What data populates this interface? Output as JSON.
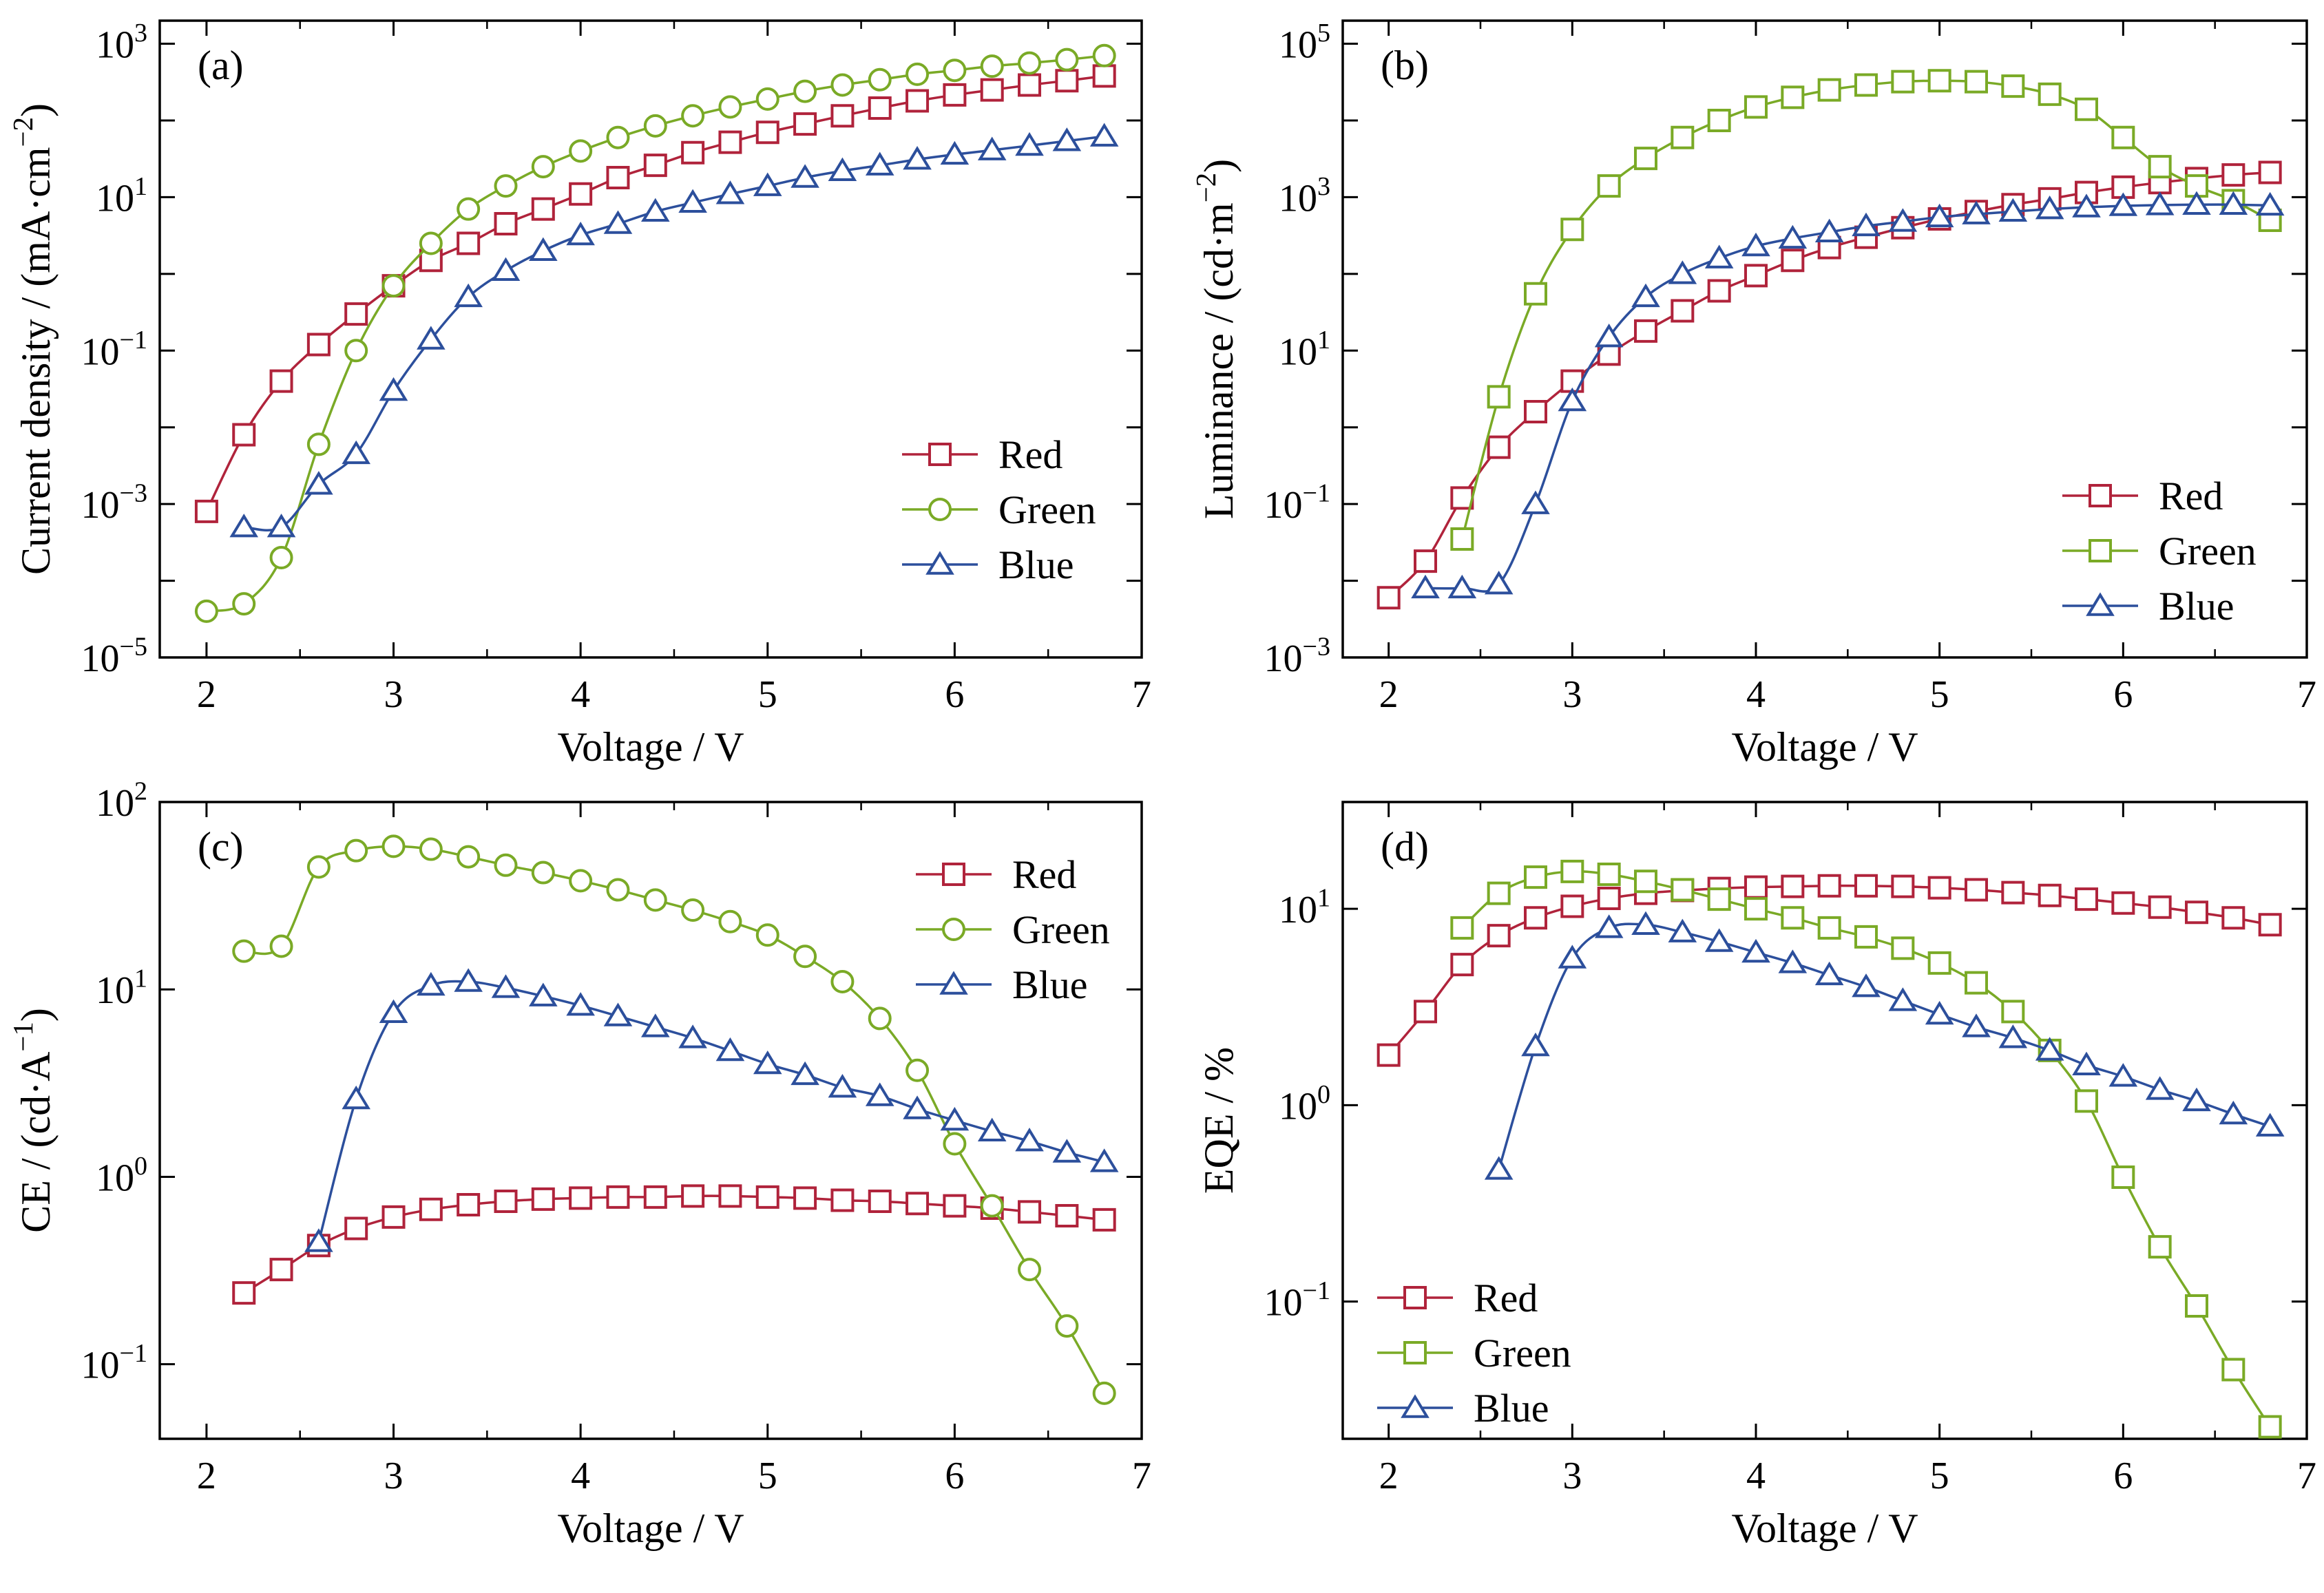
{
  "colors": {
    "Red": "#b0233b",
    "Green": "#7aaa26",
    "Blue": "#2c4f9c",
    "axis": "#000000"
  },
  "chart_data": [
    {
      "panel_label": "(a)",
      "type": "line",
      "xlabel": "Voltage / V",
      "ylabel": "Current density / (mA·cm",
      "ylabel_sup": "−2",
      "ylabel_end": ")",
      "xlim": [
        1.75,
        7
      ],
      "ylim": [
        1e-05,
        2000
      ],
      "yscale": "log",
      "x_ticks": [
        2,
        3,
        4,
        5,
        6,
        7
      ],
      "y_ticks": [
        {
          "base": "10",
          "exp": "−5"
        },
        {
          "base": "10",
          "exp": "−3"
        },
        {
          "base": "10",
          "exp": "−1"
        },
        {
          "base": "10",
          "exp": "1"
        },
        {
          "base": "10",
          "exp": "3"
        }
      ],
      "y_tick_values": [
        1e-05,
        0.001,
        0.1,
        10,
        1000
      ],
      "legend_position": "lower-right",
      "series": [
        {
          "name": "Red",
          "marker": "square",
          "x": [
            2.0,
            2.2,
            2.4,
            2.6,
            2.8,
            3.0,
            3.2,
            3.4,
            3.6,
            3.8,
            4.0,
            4.2,
            4.4,
            4.6,
            4.8,
            5.0,
            5.2,
            5.4,
            5.6,
            5.8,
            6.0,
            6.2,
            6.4,
            6.6,
            6.8
          ],
          "y": [
            0.0008,
            0.008,
            0.04,
            0.12,
            0.3,
            0.7,
            1.5,
            2.5,
            4.5,
            7,
            11,
            18,
            26,
            38,
            52,
            70,
            90,
            115,
            145,
            180,
            215,
            250,
            290,
            330,
            380
          ]
        },
        {
          "name": "Green",
          "marker": "circle",
          "x": [
            2.0,
            2.2,
            2.4,
            2.6,
            2.8,
            3.0,
            3.2,
            3.4,
            3.6,
            3.8,
            4.0,
            4.2,
            4.4,
            4.6,
            4.8,
            5.0,
            5.2,
            5.4,
            5.6,
            5.8,
            6.0,
            6.2,
            6.4,
            6.6,
            6.8
          ],
          "y": [
            4e-05,
            5e-05,
            0.0002,
            0.006,
            0.1,
            0.7,
            2.5,
            7,
            14,
            25,
            40,
            60,
            85,
            115,
            150,
            190,
            240,
            290,
            340,
            400,
            450,
            510,
            560,
            620,
            700
          ]
        },
        {
          "name": "Blue",
          "marker": "triangle",
          "x": [
            2.2,
            2.4,
            2.6,
            2.8,
            3.0,
            3.2,
            3.4,
            3.6,
            3.8,
            4.0,
            4.2,
            4.4,
            4.6,
            4.8,
            5.0,
            5.2,
            5.4,
            5.6,
            5.8,
            6.0,
            6.2,
            6.4,
            6.6,
            6.8
          ],
          "y": [
            0.0005,
            0.0005,
            0.0018,
            0.0045,
            0.03,
            0.14,
            0.5,
            1.1,
            2.0,
            3.2,
            4.5,
            6.5,
            8.5,
            11,
            14,
            18,
            22,
            26,
            31,
            36,
            41,
            47,
            54,
            62
          ]
        }
      ]
    },
    {
      "panel_label": "(b)",
      "type": "line",
      "xlabel": "Voltage / V",
      "ylabel": "Luminance / (cd·m",
      "ylabel_sup": "−2",
      "ylabel_end": ")",
      "xlim": [
        1.75,
        7
      ],
      "ylim": [
        0.001,
        200000
      ],
      "yscale": "log",
      "x_ticks": [
        2,
        3,
        4,
        5,
        6,
        7
      ],
      "y_ticks": [
        {
          "base": "10",
          "exp": "−3"
        },
        {
          "base": "10",
          "exp": "−1"
        },
        {
          "base": "10",
          "exp": "1"
        },
        {
          "base": "10",
          "exp": "3"
        },
        {
          "base": "10",
          "exp": "5"
        }
      ],
      "y_tick_values": [
        0.001,
        0.1,
        10,
        1000,
        100000
      ],
      "legend_position": "lower-right",
      "series": [
        {
          "name": "Red",
          "marker": "square",
          "x": [
            2.0,
            2.2,
            2.4,
            2.6,
            2.8,
            3.0,
            3.2,
            3.4,
            3.6,
            3.8,
            4.0,
            4.2,
            4.4,
            4.6,
            4.8,
            5.0,
            5.2,
            5.4,
            5.6,
            5.8,
            6.0,
            6.2,
            6.4,
            6.6,
            6.8
          ],
          "y": [
            0.006,
            0.018,
            0.12,
            0.55,
            1.6,
            4,
            9,
            18,
            33,
            60,
            95,
            150,
            220,
            300,
            400,
            520,
            650,
            800,
            950,
            1150,
            1350,
            1550,
            1750,
            1950,
            2100
          ]
        },
        {
          "name": "Green",
          "marker": "square",
          "x": [
            2.4,
            2.6,
            2.8,
            3.0,
            3.2,
            3.4,
            3.6,
            3.8,
            4.0,
            4.2,
            4.4,
            4.6,
            4.8,
            5.0,
            5.2,
            5.4,
            5.6,
            5.8,
            6.0,
            6.2,
            6.4,
            6.6,
            6.8
          ],
          "y": [
            0.035,
            2.5,
            55,
            380,
            1400,
            3200,
            6000,
            10000,
            15000,
            20000,
            25000,
            29000,
            32000,
            33000,
            32000,
            28000,
            22000,
            14000,
            6000,
            2500,
            1400,
            900,
            500
          ]
        },
        {
          "name": "Blue",
          "marker": "triangle",
          "x": [
            2.2,
            2.4,
            2.6,
            2.8,
            3.0,
            3.2,
            3.4,
            3.6,
            3.8,
            4.0,
            4.2,
            4.4,
            4.6,
            4.8,
            5.0,
            5.2,
            5.4,
            5.6,
            5.8,
            6.0,
            6.2,
            6.4,
            6.6,
            6.8
          ],
          "y": [
            0.008,
            0.008,
            0.009,
            0.1,
            2.2,
            15,
            50,
            100,
            160,
            230,
            290,
            350,
            420,
            480,
            550,
            600,
            650,
            700,
            740,
            770,
            790,
            800,
            800,
            780
          ]
        }
      ]
    },
    {
      "panel_label": "(c)",
      "type": "line",
      "xlabel": "Voltage / V",
      "ylabel": "CE / (cd·A",
      "ylabel_sup": "−1",
      "ylabel_end": ")",
      "xlim": [
        1.75,
        7
      ],
      "ylim": [
        0.04,
        100
      ],
      "yscale": "log",
      "x_ticks": [
        2,
        3,
        4,
        5,
        6,
        7
      ],
      "y_ticks": [
        {
          "base": "10",
          "exp": "−1"
        },
        {
          "base": "10",
          "exp": "0"
        },
        {
          "base": "10",
          "exp": "1"
        },
        {
          "base": "10",
          "exp": "2"
        }
      ],
      "y_tick_values": [
        0.1,
        1,
        10,
        100
      ],
      "legend_position": "top-right",
      "series": [
        {
          "name": "Red",
          "marker": "square",
          "x": [
            2.2,
            2.4,
            2.6,
            2.8,
            3.0,
            3.2,
            3.4,
            3.6,
            3.8,
            4.0,
            4.2,
            4.4,
            4.6,
            4.8,
            5.0,
            5.2,
            5.4,
            5.6,
            5.8,
            6.0,
            6.2,
            6.4,
            6.6,
            6.8
          ],
          "y": [
            0.24,
            0.32,
            0.43,
            0.53,
            0.61,
            0.67,
            0.71,
            0.74,
            0.76,
            0.77,
            0.78,
            0.78,
            0.79,
            0.79,
            0.78,
            0.77,
            0.75,
            0.74,
            0.72,
            0.7,
            0.68,
            0.65,
            0.62,
            0.59
          ]
        },
        {
          "name": "Green",
          "marker": "circle",
          "x": [
            2.2,
            2.4,
            2.6,
            2.8,
            3.0,
            3.2,
            3.4,
            3.6,
            3.8,
            4.0,
            4.2,
            4.4,
            4.6,
            4.8,
            5.0,
            5.2,
            5.4,
            5.6,
            5.8,
            6.0,
            6.2,
            6.4,
            6.6,
            6.8
          ],
          "y": [
            16,
            17,
            45,
            55,
            58,
            56,
            51,
            46,
            42,
            38,
            34,
            30,
            26.5,
            23,
            19.5,
            15,
            11,
            7,
            3.7,
            1.5,
            0.7,
            0.32,
            0.16,
            0.07
          ]
        },
        {
          "name": "Blue",
          "marker": "triangle",
          "x": [
            2.6,
            2.8,
            3.0,
            3.2,
            3.4,
            3.6,
            3.8,
            4.0,
            4.2,
            4.4,
            4.6,
            4.8,
            5.0,
            5.2,
            5.4,
            5.6,
            5.8,
            6.0,
            6.2,
            6.4,
            6.6,
            6.8
          ],
          "y": [
            0.45,
            2.6,
            7.5,
            10.5,
            11,
            10.2,
            9.2,
            8.2,
            7.2,
            6.3,
            5.5,
            4.7,
            4.0,
            3.5,
            3.0,
            2.7,
            2.3,
            2.0,
            1.75,
            1.55,
            1.35,
            1.2
          ]
        }
      ]
    },
    {
      "panel_label": "(d)",
      "type": "line",
      "xlabel": "Voltage / V",
      "ylabel": "EQE / %",
      "ylabel_sup": "",
      "ylabel_end": "",
      "xlim": [
        1.75,
        7
      ],
      "ylim": [
        0.02,
        35
      ],
      "yscale": "log",
      "x_ticks": [
        2,
        3,
        4,
        5,
        6,
        7
      ],
      "y_ticks": [
        {
          "base": "10",
          "exp": "−1"
        },
        {
          "base": "10",
          "exp": "0"
        },
        {
          "base": "10",
          "exp": "1"
        }
      ],
      "y_tick_values": [
        0.1,
        1,
        10
      ],
      "legend_position": "lower-left",
      "series": [
        {
          "name": "Red",
          "marker": "square",
          "x": [
            2.0,
            2.2,
            2.4,
            2.6,
            2.8,
            3.0,
            3.2,
            3.4,
            3.6,
            3.8,
            4.0,
            4.2,
            4.4,
            4.6,
            4.8,
            5.0,
            5.2,
            5.4,
            5.6,
            5.8,
            6.0,
            6.2,
            6.4,
            6.6,
            6.8
          ],
          "y": [
            1.8,
            3.0,
            5.2,
            7.3,
            9.0,
            10.3,
            11.3,
            12.0,
            12.4,
            12.7,
            12.9,
            13.0,
            13.1,
            13.1,
            13.0,
            12.8,
            12.5,
            12.1,
            11.7,
            11.2,
            10.7,
            10.2,
            9.6,
            9.0,
            8.3
          ]
        },
        {
          "name": "Green",
          "marker": "square",
          "x": [
            2.4,
            2.6,
            2.8,
            3.0,
            3.2,
            3.4,
            3.6,
            3.8,
            4.0,
            4.2,
            4.4,
            4.6,
            4.8,
            5.0,
            5.2,
            5.4,
            5.6,
            5.8,
            6.0,
            6.2,
            6.4,
            6.6,
            6.8
          ],
          "y": [
            8.0,
            12.0,
            14.5,
            15.5,
            15.0,
            13.8,
            12.5,
            11.2,
            10.0,
            9.0,
            8.0,
            7.2,
            6.3,
            5.3,
            4.2,
            3.0,
            1.9,
            1.05,
            0.43,
            0.19,
            0.095,
            0.045,
            0.023
          ]
        },
        {
          "name": "Blue",
          "marker": "triangle",
          "x": [
            2.6,
            2.8,
            3.0,
            3.2,
            3.4,
            3.6,
            3.8,
            4.0,
            4.2,
            4.4,
            4.6,
            4.8,
            5.0,
            5.2,
            5.4,
            5.6,
            5.8,
            6.0,
            6.2,
            6.4,
            6.6,
            6.8
          ],
          "y": [
            0.47,
            2.0,
            5.6,
            8.0,
            8.3,
            7.6,
            6.8,
            6.0,
            5.3,
            4.6,
            4.0,
            3.4,
            2.9,
            2.5,
            2.2,
            1.9,
            1.6,
            1.4,
            1.2,
            1.05,
            0.9,
            0.78
          ]
        }
      ]
    }
  ]
}
